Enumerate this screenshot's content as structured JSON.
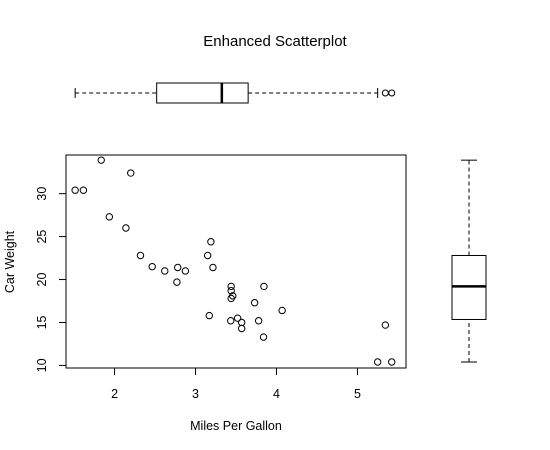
{
  "chart_data": {
    "type": "scatter",
    "title": "Enhanced Scatterplot",
    "xlabel": "Miles Per Gallon",
    "ylabel": "Car Weight",
    "xlim": [
      1.4,
      5.6
    ],
    "ylim": [
      9.7,
      34.5
    ],
    "xticks": [
      2,
      3,
      4,
      5
    ],
    "yticks": [
      10,
      15,
      20,
      25,
      30
    ],
    "grid": false,
    "points": [
      {
        "x": 1.513,
        "y": 30.4
      },
      {
        "x": 1.615,
        "y": 30.4
      },
      {
        "x": 1.835,
        "y": 33.9
      },
      {
        "x": 1.935,
        "y": 27.3
      },
      {
        "x": 2.14,
        "y": 26.0
      },
      {
        "x": 2.2,
        "y": 32.4
      },
      {
        "x": 2.32,
        "y": 22.8
      },
      {
        "x": 2.465,
        "y": 21.5
      },
      {
        "x": 2.62,
        "y": 21.0
      },
      {
        "x": 2.77,
        "y": 19.7
      },
      {
        "x": 2.78,
        "y": 21.4
      },
      {
        "x": 2.875,
        "y": 21.0
      },
      {
        "x": 3.15,
        "y": 22.8
      },
      {
        "x": 3.17,
        "y": 15.8
      },
      {
        "x": 3.19,
        "y": 24.4
      },
      {
        "x": 3.215,
        "y": 21.4
      },
      {
        "x": 3.435,
        "y": 15.2
      },
      {
        "x": 3.44,
        "y": 18.7
      },
      {
        "x": 3.44,
        "y": 19.2
      },
      {
        "x": 3.44,
        "y": 17.8
      },
      {
        "x": 3.46,
        "y": 18.1
      },
      {
        "x": 3.52,
        "y": 15.5
      },
      {
        "x": 3.57,
        "y": 14.3
      },
      {
        "x": 3.57,
        "y": 15.0
      },
      {
        "x": 3.73,
        "y": 17.3
      },
      {
        "x": 3.78,
        "y": 15.2
      },
      {
        "x": 3.84,
        "y": 13.3
      },
      {
        "x": 3.845,
        "y": 19.2
      },
      {
        "x": 4.07,
        "y": 16.4
      },
      {
        "x": 5.25,
        "y": 10.4
      },
      {
        "x": 5.345,
        "y": 14.7
      },
      {
        "x": 5.424,
        "y": 10.4
      }
    ],
    "x_boxplot": {
      "whisker_low": 1.513,
      "q1": 2.52,
      "median": 3.325,
      "q3": 3.65,
      "whisker_high": 5.25,
      "outliers": [
        5.345,
        5.424
      ]
    },
    "y_boxplot": {
      "whisker_low": 10.4,
      "q1": 15.35,
      "median": 19.2,
      "q3": 22.8,
      "whisker_high": 33.9,
      "outliers": []
    }
  }
}
